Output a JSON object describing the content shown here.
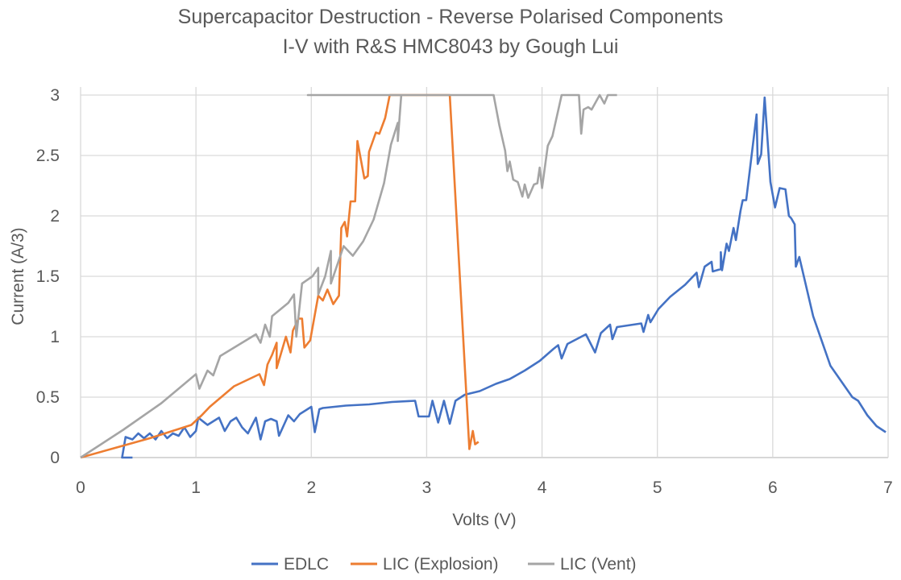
{
  "chart_data": {
    "type": "line",
    "title": "Supercapacitor Destruction - Reverse Polarised Components",
    "subtitle": "I-V with R&S HMC8043 by Gough Lui",
    "xlabel": "Volts (V)",
    "ylabel": "Current (A/3)",
    "xlim": [
      0,
      7
    ],
    "ylim": [
      0,
      3
    ],
    "xticks": [
      "0",
      "1",
      "2",
      "3",
      "4",
      "5",
      "6",
      "7"
    ],
    "yticks": [
      "0",
      "0.5",
      "1",
      "1.5",
      "2",
      "2.5",
      "3"
    ],
    "grid": true,
    "legend": "bottom",
    "series": [
      {
        "name": "EDLC",
        "color": "#4472C4",
        "points": [
          [
            0.45,
            0
          ],
          [
            0.36,
            0
          ],
          [
            0.39,
            0.17
          ],
          [
            0.45,
            0.15
          ],
          [
            0.5,
            0.2
          ],
          [
            0.55,
            0.16
          ],
          [
            0.6,
            0.2
          ],
          [
            0.65,
            0.15
          ],
          [
            0.7,
            0.22
          ],
          [
            0.75,
            0.16
          ],
          [
            0.8,
            0.2
          ],
          [
            0.85,
            0.18
          ],
          [
            0.9,
            0.25
          ],
          [
            0.95,
            0.17
          ],
          [
            1.0,
            0.22
          ],
          [
            1.02,
            0.33
          ],
          [
            1.1,
            0.27
          ],
          [
            1.15,
            0.3
          ],
          [
            1.2,
            0.33
          ],
          [
            1.25,
            0.22
          ],
          [
            1.3,
            0.3
          ],
          [
            1.35,
            0.33
          ],
          [
            1.4,
            0.25
          ],
          [
            1.45,
            0.2
          ],
          [
            1.52,
            0.33
          ],
          [
            1.56,
            0.15
          ],
          [
            1.6,
            0.3
          ],
          [
            1.65,
            0.32
          ],
          [
            1.7,
            0.3
          ],
          [
            1.72,
            0.18
          ],
          [
            1.8,
            0.35
          ],
          [
            1.85,
            0.3
          ],
          [
            1.9,
            0.36
          ],
          [
            2.0,
            0.42
          ],
          [
            2.03,
            0.21
          ],
          [
            2.07,
            0.4
          ],
          [
            2.1,
            0.41
          ],
          [
            2.3,
            0.43
          ],
          [
            2.5,
            0.44
          ],
          [
            2.7,
            0.46
          ],
          [
            2.9,
            0.47
          ],
          [
            2.93,
            0.34
          ],
          [
            3.02,
            0.34
          ],
          [
            3.05,
            0.47
          ],
          [
            3.1,
            0.29
          ],
          [
            3.15,
            0.47
          ],
          [
            3.2,
            0.28
          ],
          [
            3.25,
            0.47
          ],
          [
            3.33,
            0.52
          ],
          [
            3.46,
            0.55
          ],
          [
            3.6,
            0.61
          ],
          [
            3.72,
            0.65
          ],
          [
            3.85,
            0.72
          ],
          [
            3.98,
            0.8
          ],
          [
            4.1,
            0.9
          ],
          [
            4.14,
            0.93
          ],
          [
            4.17,
            0.82
          ],
          [
            4.22,
            0.94
          ],
          [
            4.38,
            1.02
          ],
          [
            4.46,
            0.87
          ],
          [
            4.51,
            1.03
          ],
          [
            4.59,
            1.1
          ],
          [
            4.61,
            0.98
          ],
          [
            4.65,
            1.08
          ],
          [
            4.86,
            1.11
          ],
          [
            4.88,
            1.04
          ],
          [
            4.92,
            1.18
          ],
          [
            4.94,
            1.12
          ],
          [
            5.01,
            1.23
          ],
          [
            5.11,
            1.33
          ],
          [
            5.24,
            1.43
          ],
          [
            5.34,
            1.53
          ],
          [
            5.36,
            1.41
          ],
          [
            5.41,
            1.58
          ],
          [
            5.47,
            1.62
          ],
          [
            5.48,
            1.54
          ],
          [
            5.55,
            1.56
          ],
          [
            5.55,
            1.7
          ],
          [
            5.56,
            1.55
          ],
          [
            5.6,
            1.77
          ],
          [
            5.62,
            1.71
          ],
          [
            5.66,
            1.9
          ],
          [
            5.68,
            1.8
          ],
          [
            5.72,
            2.04
          ],
          [
            5.74,
            2.13
          ],
          [
            5.77,
            2.13
          ],
          [
            5.86,
            2.84
          ],
          [
            5.87,
            2.43
          ],
          [
            5.9,
            2.51
          ],
          [
            5.93,
            2.98
          ],
          [
            5.98,
            2.28
          ],
          [
            6.02,
            2.07
          ],
          [
            6.06,
            2.23
          ],
          [
            6.11,
            2.22
          ],
          [
            6.14,
            2.0
          ],
          [
            6.16,
            1.98
          ],
          [
            6.19,
            1.93
          ],
          [
            6.2,
            1.58
          ],
          [
            6.23,
            1.66
          ],
          [
            6.35,
            1.17
          ],
          [
            6.5,
            0.76
          ],
          [
            6.69,
            0.5
          ],
          [
            6.74,
            0.47
          ],
          [
            6.82,
            0.35
          ],
          [
            6.9,
            0.26
          ],
          [
            6.98,
            0.21
          ]
        ]
      },
      {
        "name": "LIC (Explosion)",
        "color": "#ED7D31",
        "points": [
          [
            0,
            0
          ],
          [
            0.3,
            0.08
          ],
          [
            0.6,
            0.16
          ],
          [
            0.96,
            0.27
          ],
          [
            1.05,
            0.35
          ],
          [
            1.12,
            0.42
          ],
          [
            1.33,
            0.59
          ],
          [
            1.55,
            0.69
          ],
          [
            1.59,
            0.6
          ],
          [
            1.62,
            0.77
          ],
          [
            1.66,
            0.85
          ],
          [
            1.7,
            0.95
          ],
          [
            1.7,
            0.74
          ],
          [
            1.78,
            1.0
          ],
          [
            1.82,
            0.87
          ],
          [
            1.84,
            1.05
          ],
          [
            1.89,
            1.15
          ],
          [
            1.92,
            1.15
          ],
          [
            1.94,
            0.91
          ],
          [
            1.99,
            0.97
          ],
          [
            2.06,
            1.34
          ],
          [
            2.1,
            1.3
          ],
          [
            2.14,
            1.39
          ],
          [
            2.19,
            1.27
          ],
          [
            2.24,
            1.34
          ],
          [
            2.26,
            1.9
          ],
          [
            2.29,
            1.95
          ],
          [
            2.31,
            1.83
          ],
          [
            2.34,
            2.12
          ],
          [
            2.38,
            2.12
          ],
          [
            2.4,
            2.62
          ],
          [
            2.46,
            2.31
          ],
          [
            2.49,
            2.33
          ],
          [
            2.5,
            2.53
          ],
          [
            2.56,
            2.69
          ],
          [
            2.59,
            2.68
          ],
          [
            2.64,
            2.81
          ],
          [
            2.68,
            3.0
          ],
          [
            3.2,
            3.0
          ],
          [
            3.37,
            0.07
          ],
          [
            3.4,
            0.22
          ],
          [
            3.42,
            0.11
          ],
          [
            3.45,
            0.13
          ]
        ]
      },
      {
        "name": "LIC (Vent)",
        "color": "#A5A5A5",
        "points": [
          [
            0,
            0
          ],
          [
            0.37,
            0.23
          ],
          [
            0.7,
            0.45
          ],
          [
            1.0,
            0.69
          ],
          [
            1.03,
            0.57
          ],
          [
            1.1,
            0.72
          ],
          [
            1.15,
            0.68
          ],
          [
            1.21,
            0.84
          ],
          [
            1.52,
            1.02
          ],
          [
            1.56,
            0.95
          ],
          [
            1.6,
            1.1
          ],
          [
            1.64,
            1.0
          ],
          [
            1.66,
            1.17
          ],
          [
            1.8,
            1.28
          ],
          [
            1.85,
            1.35
          ],
          [
            1.87,
            1.0
          ],
          [
            1.92,
            1.44
          ],
          [
            2.01,
            1.5
          ],
          [
            2.06,
            1.57
          ],
          [
            2.06,
            1.35
          ],
          [
            2.12,
            1.5
          ],
          [
            2.17,
            1.71
          ],
          [
            2.17,
            1.44
          ],
          [
            2.28,
            1.75
          ],
          [
            2.33,
            1.7
          ],
          [
            2.36,
            1.67
          ],
          [
            2.45,
            1.79
          ],
          [
            2.54,
            1.97
          ],
          [
            2.63,
            2.27
          ],
          [
            2.69,
            2.59
          ],
          [
            2.75,
            2.77
          ],
          [
            2.75,
            2.62
          ],
          [
            2.78,
            3.0
          ],
          [
            1.97,
            3.0
          ],
          [
            3.58,
            3.0
          ],
          [
            3.63,
            2.75
          ],
          [
            3.68,
            2.54
          ],
          [
            3.7,
            2.37
          ],
          [
            3.72,
            2.45
          ],
          [
            3.75,
            2.3
          ],
          [
            3.79,
            2.28
          ],
          [
            3.83,
            2.16
          ],
          [
            3.85,
            2.26
          ],
          [
            3.88,
            2.15
          ],
          [
            3.93,
            2.26
          ],
          [
            3.96,
            2.27
          ],
          [
            3.98,
            2.4
          ],
          [
            4.0,
            2.23
          ],
          [
            4.05,
            2.58
          ],
          [
            4.09,
            2.66
          ],
          [
            4.17,
            3.0
          ],
          [
            4.32,
            3.0
          ],
          [
            4.34,
            2.68
          ],
          [
            4.36,
            2.88
          ],
          [
            4.4,
            2.9
          ],
          [
            4.43,
            2.88
          ],
          [
            4.5,
            3.0
          ],
          [
            4.54,
            2.93
          ],
          [
            4.57,
            3.0
          ],
          [
            4.65,
            3.0
          ]
        ]
      }
    ]
  }
}
